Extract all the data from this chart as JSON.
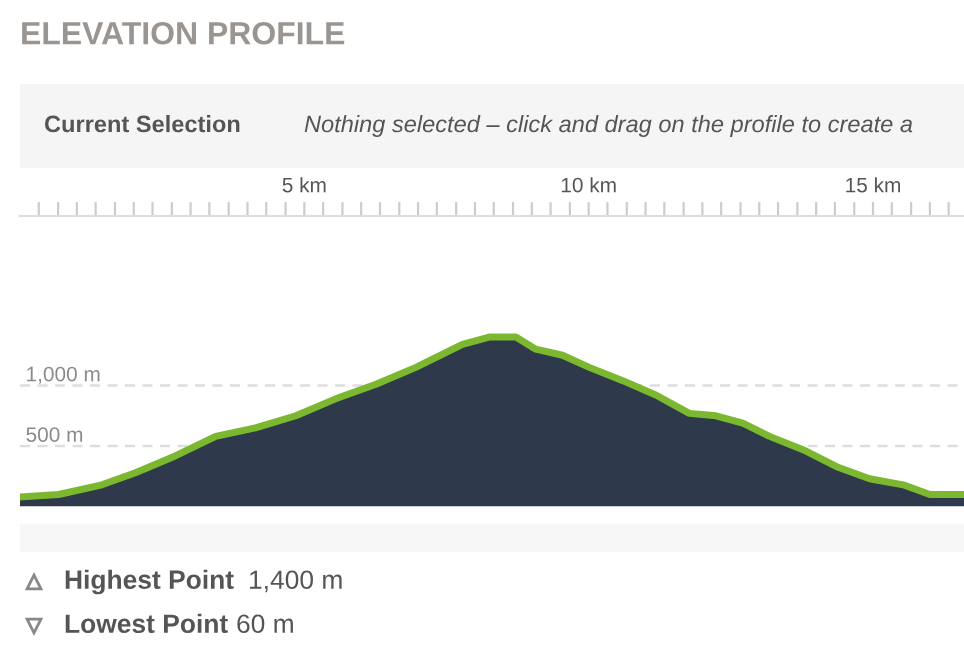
{
  "chart_data": {
    "type": "area",
    "title": "ELEVATION PROFILE",
    "x": [
      0,
      0.68,
      1.44,
      2.03,
      2.74,
      3.44,
      4.14,
      4.85,
      5.55,
      6.26,
      6.96,
      7.78,
      8.25,
      8.72,
      9.07,
      9.54,
      10.01,
      10.6,
      11.19,
      11.77,
      12.24,
      12.71,
      13.18,
      13.77,
      14.36,
      14.94,
      15.53,
      16.0,
      16.6
    ],
    "series": [
      {
        "color": "#2e3a4b",
        "values": [
          80,
          100,
          180,
          280,
          420,
          580,
          650,
          750,
          890,
          1010,
          1150,
          1340,
          1400,
          1400,
          1300,
          1250,
          1150,
          1040,
          920,
          770,
          750,
          690,
          580,
          470,
          330,
          230,
          180,
          100,
          100
        ]
      }
    ],
    "xlim": [
      0,
      16.6
    ],
    "ylim": [
      0,
      2400
    ],
    "xticks": [
      {
        "value": 0.33,
        "label": null
      },
      {
        "value": 0.67,
        "label": null
      },
      {
        "value": 1,
        "label": null
      },
      {
        "value": 1.33,
        "label": null
      },
      {
        "value": 1.67,
        "label": null
      },
      {
        "value": 2,
        "label": null
      },
      {
        "value": 2.33,
        "label": null
      },
      {
        "value": 2.67,
        "label": null
      },
      {
        "value": 3,
        "label": null
      },
      {
        "value": 3.33,
        "label": null
      },
      {
        "value": 3.67,
        "label": null
      },
      {
        "value": 4,
        "label": null
      },
      {
        "value": 4.33,
        "label": null
      },
      {
        "value": 4.67,
        "label": null
      },
      {
        "value": 5,
        "label": "5 km"
      },
      {
        "value": 5.33,
        "label": null
      },
      {
        "value": 5.67,
        "label": null
      },
      {
        "value": 6,
        "label": null
      },
      {
        "value": 6.33,
        "label": null
      },
      {
        "value": 6.67,
        "label": null
      },
      {
        "value": 7,
        "label": null
      },
      {
        "value": 7.33,
        "label": null
      },
      {
        "value": 7.67,
        "label": null
      },
      {
        "value": 8,
        "label": null
      },
      {
        "value": 8.33,
        "label": null
      },
      {
        "value": 8.67,
        "label": null
      },
      {
        "value": 9,
        "label": null
      },
      {
        "value": 9.33,
        "label": null
      },
      {
        "value": 9.67,
        "label": null
      },
      {
        "value": 10,
        "label": "10 km"
      },
      {
        "value": 10.33,
        "label": null
      },
      {
        "value": 10.67,
        "label": null
      },
      {
        "value": 11,
        "label": null
      },
      {
        "value": 11.33,
        "label": null
      },
      {
        "value": 11.67,
        "label": null
      },
      {
        "value": 12,
        "label": null
      },
      {
        "value": 12.33,
        "label": null
      },
      {
        "value": 12.67,
        "label": null
      },
      {
        "value": 13,
        "label": null
      },
      {
        "value": 13.33,
        "label": null
      },
      {
        "value": 13.67,
        "label": null
      },
      {
        "value": 14,
        "label": null
      },
      {
        "value": 14.33,
        "label": null
      },
      {
        "value": 14.67,
        "label": null
      },
      {
        "value": 15,
        "label": "15 km"
      },
      {
        "value": 15.33,
        "label": null
      },
      {
        "value": 15.67,
        "label": null
      },
      {
        "value": 16,
        "label": null
      },
      {
        "value": 16.33,
        "label": null
      }
    ],
    "yticks": [
      {
        "value": 500,
        "label": "500 m"
      },
      {
        "value": 1000,
        "label": "1,000 m"
      }
    ],
    "grid": "y",
    "annotations": [
      "Current Selection",
      "Nothing selected – click and drag on the profile to create a",
      "Highest Point",
      "1,400 m",
      "Lowest Point",
      "60 m"
    ]
  }
}
